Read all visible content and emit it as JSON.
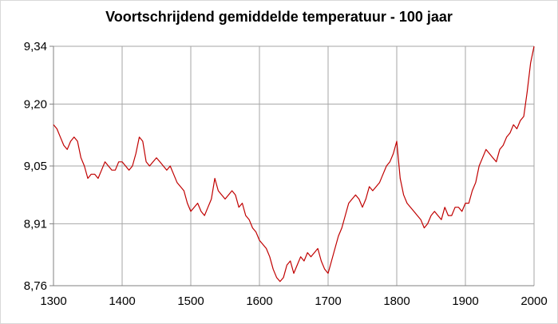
{
  "chart_data": {
    "type": "line",
    "title": "Voortschrijdend gemiddelde temperatuur - 100 jaar",
    "xlabel": "",
    "ylabel": "",
    "xlim": [
      1300,
      2000
    ],
    "ylim": [
      8.76,
      9.34
    ],
    "x_ticks": [
      1300,
      1400,
      1500,
      1600,
      1700,
      1800,
      1900,
      2000
    ],
    "x_tick_labels": [
      "1300",
      "1400",
      "1500",
      "1600",
      "1700",
      "1800",
      "1900",
      "2000"
    ],
    "y_ticks": [
      8.76,
      8.91,
      9.05,
      9.2,
      9.34
    ],
    "y_tick_labels": [
      "8,76",
      "8,91",
      "9,05",
      "9,20",
      "9,34"
    ],
    "grid": true,
    "legend": "none",
    "line_color": "#c00000",
    "series": [
      {
        "x": [
          1300,
          1305,
          1310,
          1315,
          1320,
          1325,
          1330,
          1335,
          1340,
          1345,
          1350,
          1355,
          1360,
          1365,
          1370,
          1375,
          1380,
          1385,
          1390,
          1395,
          1400,
          1405,
          1410,
          1415,
          1420,
          1425,
          1430,
          1435,
          1440,
          1445,
          1450,
          1455,
          1460,
          1465,
          1470,
          1475,
          1480,
          1485,
          1490,
          1495,
          1500,
          1505,
          1510,
          1515,
          1520,
          1525,
          1530,
          1535,
          1540,
          1545,
          1550,
          1555,
          1560,
          1565,
          1570,
          1575,
          1580,
          1585,
          1590,
          1595,
          1600,
          1605,
          1610,
          1615,
          1620,
          1625,
          1630,
          1635,
          1640,
          1645,
          1650,
          1655,
          1660,
          1665,
          1670,
          1675,
          1680,
          1685,
          1690,
          1695,
          1700,
          1705,
          1710,
          1715,
          1720,
          1725,
          1730,
          1735,
          1740,
          1745,
          1750,
          1755,
          1760,
          1765,
          1770,
          1775,
          1780,
          1785,
          1790,
          1795,
          1800,
          1805,
          1810,
          1815,
          1820,
          1825,
          1830,
          1835,
          1840,
          1845,
          1850,
          1855,
          1860,
          1865,
          1870,
          1875,
          1880,
          1885,
          1890,
          1895,
          1900,
          1905,
          1910,
          1915,
          1920,
          1925,
          1930,
          1935,
          1940,
          1945,
          1950,
          1955,
          1960,
          1965,
          1970,
          1975,
          1980,
          1985,
          1990,
          1995,
          2000
        ],
        "y": [
          9.15,
          9.14,
          9.12,
          9.1,
          9.09,
          9.11,
          9.12,
          9.11,
          9.07,
          9.05,
          9.02,
          9.03,
          9.03,
          9.02,
          9.04,
          9.06,
          9.05,
          9.04,
          9.04,
          9.06,
          9.06,
          9.05,
          9.04,
          9.05,
          9.08,
          9.12,
          9.11,
          9.06,
          9.05,
          9.06,
          9.07,
          9.06,
          9.05,
          9.04,
          9.05,
          9.03,
          9.01,
          9.0,
          8.99,
          8.96,
          8.94,
          8.95,
          8.96,
          8.94,
          8.93,
          8.95,
          8.97,
          9.02,
          8.99,
          8.98,
          8.97,
          8.98,
          8.99,
          8.98,
          8.95,
          8.96,
          8.93,
          8.92,
          8.9,
          8.89,
          8.87,
          8.86,
          8.85,
          8.83,
          8.8,
          8.78,
          8.77,
          8.78,
          8.81,
          8.82,
          8.79,
          8.81,
          8.83,
          8.82,
          8.84,
          8.83,
          8.84,
          8.85,
          8.82,
          8.8,
          8.79,
          8.82,
          8.85,
          8.88,
          8.9,
          8.93,
          8.96,
          8.97,
          8.98,
          8.97,
          8.95,
          8.97,
          9.0,
          8.99,
          9.0,
          9.01,
          9.03,
          9.05,
          9.06,
          9.08,
          9.11,
          9.02,
          8.98,
          8.96,
          8.95,
          8.94,
          8.93,
          8.92,
          8.9,
          8.91,
          8.93,
          8.94,
          8.93,
          8.92,
          8.95,
          8.93,
          8.93,
          8.95,
          8.95,
          8.94,
          8.96,
          8.96,
          8.99,
          9.01,
          9.05,
          9.07,
          9.09,
          9.08,
          9.07,
          9.06,
          9.09,
          9.1,
          9.12,
          9.13,
          9.15,
          9.14,
          9.16,
          9.17,
          9.23,
          9.3,
          9.34
        ]
      }
    ]
  }
}
